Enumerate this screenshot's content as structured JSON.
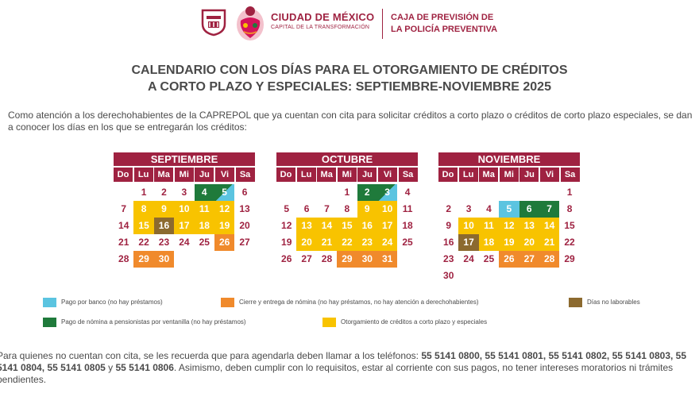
{
  "header": {
    "city_name": "CIUDAD DE MÉXICO",
    "city_slogan": "CAPITAL DE LA TRANSFORMACIÓN",
    "org_line1": "CAJA DE PREVISIÓN DE",
    "org_line2": "LA POLICÍA PREVENTIVA"
  },
  "title": {
    "line1": "CALENDARIO CON LOS DÍAS PARA EL OTORGAMIENTO DE CRÉDITOS",
    "line2": "A CORTO PLAZO Y ESPECIALES: SEPTIEMBRE-NOVIEMBRE 2025"
  },
  "intro": "Como atención a los derechohabientes de la CAPREPOL que ya cuentan con cita para solicitar créditos a corto plazo o créditos de corto plazo especiales, se dan a conocer los días en los que se entregarán los créditos:",
  "weekdays": [
    "Do",
    "Lu",
    "Ma",
    "Mi",
    "Ju",
    "Vi",
    "Sa"
  ],
  "colors": {
    "brand": "#9f2241",
    "yellow": "#f8c300",
    "orange": "#f08a2c",
    "green": "#1f7a3b",
    "blue": "#5bc4e0",
    "brown": "#8c6a2f"
  },
  "months": [
    {
      "name": "SEPTIEMBRE",
      "offset": 1,
      "days": [
        {
          "d": "1",
          "t": "plain"
        },
        {
          "d": "2",
          "t": "plain"
        },
        {
          "d": "3",
          "t": "plain"
        },
        {
          "d": "4",
          "t": "green"
        },
        {
          "d": "5",
          "t": "split"
        },
        {
          "d": "6",
          "t": "plain"
        },
        {
          "d": "7",
          "t": "plain"
        },
        {
          "d": "8",
          "t": "yellow"
        },
        {
          "d": "9",
          "t": "yellow"
        },
        {
          "d": "10",
          "t": "yellow"
        },
        {
          "d": "11",
          "t": "yellow"
        },
        {
          "d": "12",
          "t": "yellow"
        },
        {
          "d": "13",
          "t": "plain"
        },
        {
          "d": "14",
          "t": "plain"
        },
        {
          "d": "15",
          "t": "yellow"
        },
        {
          "d": "16",
          "t": "brown"
        },
        {
          "d": "17",
          "t": "yellow"
        },
        {
          "d": "18",
          "t": "yellow"
        },
        {
          "d": "19",
          "t": "yellow"
        },
        {
          "d": "20",
          "t": "plain"
        },
        {
          "d": "21",
          "t": "plain"
        },
        {
          "d": "22",
          "t": "plain"
        },
        {
          "d": "23",
          "t": "plain"
        },
        {
          "d": "24",
          "t": "plain"
        },
        {
          "d": "25",
          "t": "plain"
        },
        {
          "d": "26",
          "t": "orange"
        },
        {
          "d": "27",
          "t": "plain"
        },
        {
          "d": "28",
          "t": "plain"
        },
        {
          "d": "29",
          "t": "orange"
        },
        {
          "d": "30",
          "t": "orange"
        }
      ]
    },
    {
      "name": "OCTUBRE",
      "offset": 3,
      "days": [
        {
          "d": "1",
          "t": "plain"
        },
        {
          "d": "2",
          "t": "green"
        },
        {
          "d": "3",
          "t": "split"
        },
        {
          "d": "4",
          "t": "plain"
        },
        {
          "d": "5",
          "t": "plain"
        },
        {
          "d": "6",
          "t": "plain"
        },
        {
          "d": "7",
          "t": "plain"
        },
        {
          "d": "8",
          "t": "plain"
        },
        {
          "d": "9",
          "t": "yellow"
        },
        {
          "d": "10",
          "t": "yellow"
        },
        {
          "d": "11",
          "t": "plain"
        },
        {
          "d": "12",
          "t": "plain"
        },
        {
          "d": "13",
          "t": "yellow"
        },
        {
          "d": "14",
          "t": "yellow"
        },
        {
          "d": "15",
          "t": "yellow"
        },
        {
          "d": "16",
          "t": "yellow"
        },
        {
          "d": "17",
          "t": "yellow"
        },
        {
          "d": "18",
          "t": "plain"
        },
        {
          "d": "19",
          "t": "plain"
        },
        {
          "d": "20",
          "t": "yellow"
        },
        {
          "d": "21",
          "t": "yellow"
        },
        {
          "d": "22",
          "t": "yellow"
        },
        {
          "d": "23",
          "t": "yellow"
        },
        {
          "d": "24",
          "t": "yellow"
        },
        {
          "d": "25",
          "t": "plain"
        },
        {
          "d": "26",
          "t": "plain"
        },
        {
          "d": "27",
          "t": "plain"
        },
        {
          "d": "28",
          "t": "plain"
        },
        {
          "d": "29",
          "t": "orange"
        },
        {
          "d": "30",
          "t": "orange"
        },
        {
          "d": "31",
          "t": "orange"
        }
      ]
    },
    {
      "name": "NOVIEMBRE",
      "offset": 6,
      "days": [
        {
          "d": "1",
          "t": "plain"
        },
        {
          "d": "2",
          "t": "plain"
        },
        {
          "d": "3",
          "t": "plain"
        },
        {
          "d": "4",
          "t": "plain"
        },
        {
          "d": "5",
          "t": "blue"
        },
        {
          "d": "6",
          "t": "green"
        },
        {
          "d": "7",
          "t": "green"
        },
        {
          "d": "8",
          "t": "plain"
        },
        {
          "d": "9",
          "t": "plain"
        },
        {
          "d": "10",
          "t": "yellow"
        },
        {
          "d": "11",
          "t": "yellow"
        },
        {
          "d": "12",
          "t": "yellow"
        },
        {
          "d": "13",
          "t": "yellow"
        },
        {
          "d": "14",
          "t": "yellow"
        },
        {
          "d": "15",
          "t": "plain"
        },
        {
          "d": "16",
          "t": "plain"
        },
        {
          "d": "17",
          "t": "brown"
        },
        {
          "d": "18",
          "t": "yellow"
        },
        {
          "d": "19",
          "t": "yellow"
        },
        {
          "d": "20",
          "t": "yellow"
        },
        {
          "d": "21",
          "t": "yellow"
        },
        {
          "d": "22",
          "t": "plain"
        },
        {
          "d": "23",
          "t": "plain"
        },
        {
          "d": "24",
          "t": "plain"
        },
        {
          "d": "25",
          "t": "plain"
        },
        {
          "d": "26",
          "t": "orange"
        },
        {
          "d": "27",
          "t": "orange"
        },
        {
          "d": "28",
          "t": "orange"
        },
        {
          "d": "29",
          "t": "plain"
        },
        {
          "d": "30",
          "t": "plain"
        }
      ]
    }
  ],
  "legend": {
    "blue": "Pago por banco (no hay préstamos)",
    "orange": "Cierre y entrega de nómina (no hay préstamos, no hay atención a derechohabientes)",
    "brown": "Días no laborables",
    "green": "Pago de nómina a pensionistas por ventanilla (no hay préstamos)",
    "yellow": "Otorgamiento de créditos a corto plazo y especiales"
  },
  "footer": {
    "text1": "Para quienes no cuentan con cita, se les recuerda que para agendarla deben llamar a los teléfonos: ",
    "phones1": "55 5141 0800, 55 5141 0801, 55 5141 0802,",
    "phones2": "55 5141 0803, 55 5141 0804, 55 5141 0805",
    "text2": " y ",
    "phones3": "55 5141 0806",
    "text3": ". Asimismo, deben cumplir con lo requisitos, estar al corriente con sus pagos, no tener intereses moratorios ni trámites pendientes."
  }
}
